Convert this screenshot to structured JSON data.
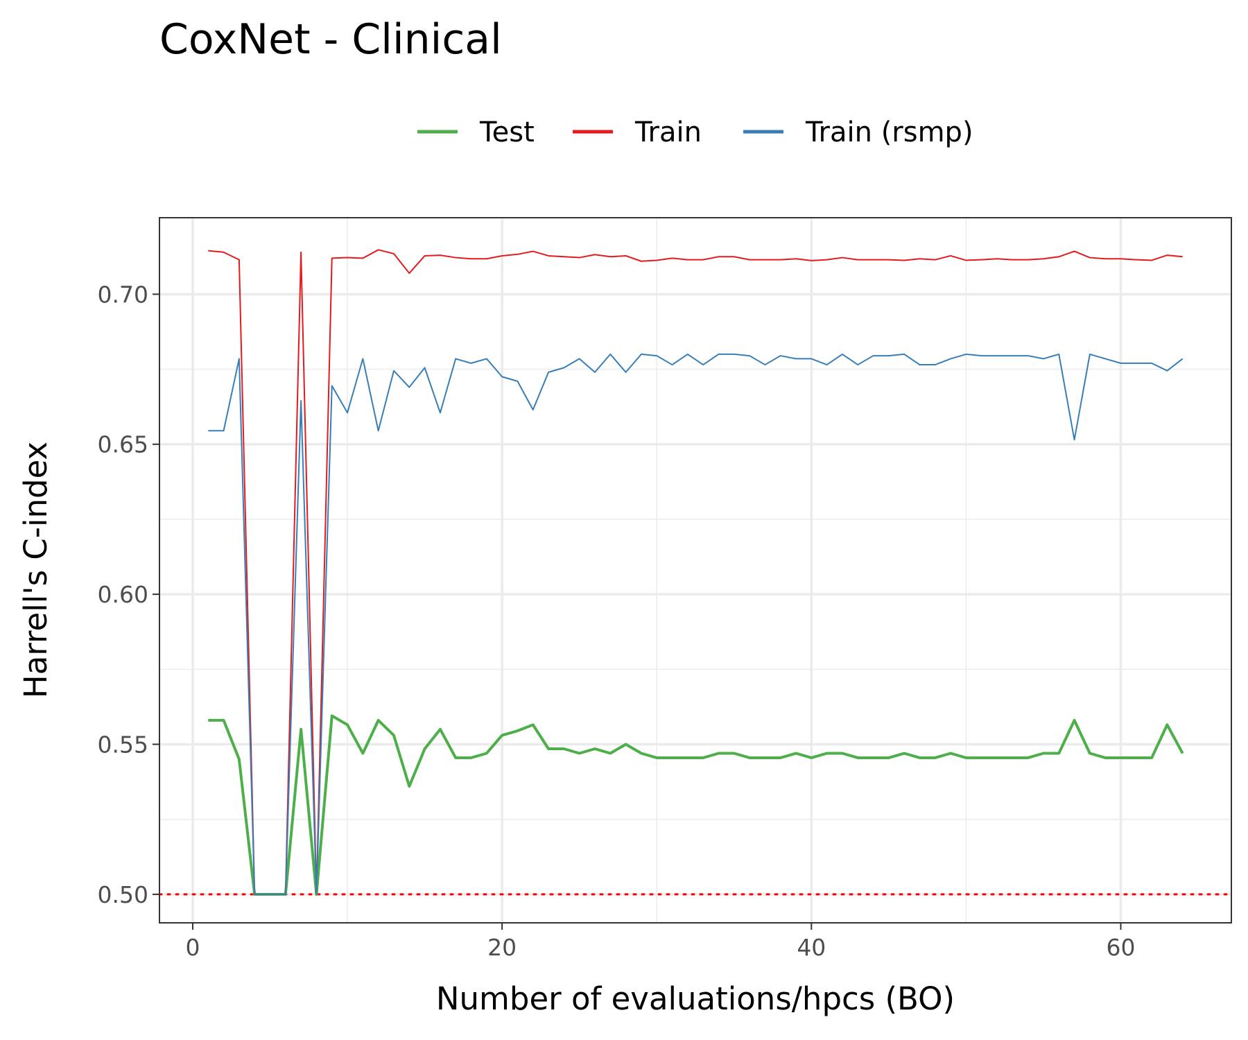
{
  "chart_data": {
    "type": "line",
    "title": "CoxNet - Clinical",
    "xlabel": "Number of evaluations/hpcs (BO)",
    "ylabel": "Harrell's C-index",
    "xlim": [
      -2.15,
      67.15
    ],
    "ylim": [
      0.4905,
      0.7255
    ],
    "x_ticks": [
      0,
      20,
      40,
      60
    ],
    "x_tick_labels": [
      "0",
      "20",
      "40",
      "60"
    ],
    "y_ticks": [
      0.5,
      0.55,
      0.6,
      0.65,
      0.7
    ],
    "y_tick_labels": [
      "0.50",
      "0.55",
      "0.60",
      "0.65",
      "0.70"
    ],
    "grid": true,
    "legend_position": "top",
    "reference_line": {
      "y": 0.5,
      "style": "dotted",
      "color": "#ff0000"
    },
    "x": [
      1,
      2,
      3,
      4,
      5,
      6,
      7,
      8,
      9,
      10,
      11,
      12,
      13,
      14,
      15,
      16,
      17,
      18,
      19,
      20,
      21,
      22,
      23,
      24,
      25,
      26,
      27,
      28,
      29,
      30,
      31,
      32,
      33,
      34,
      35,
      36,
      37,
      38,
      39,
      40,
      41,
      42,
      43,
      44,
      45,
      46,
      47,
      48,
      49,
      50,
      51,
      52,
      53,
      54,
      55,
      56,
      57,
      58,
      59,
      60,
      61,
      62,
      63,
      64
    ],
    "series": [
      {
        "name": "Test",
        "color": "#4daf4a",
        "values": [
          0.558,
          0.558,
          0.545,
          0.5,
          0.5,
          0.5,
          0.555,
          0.5,
          0.5595,
          0.5565,
          0.547,
          0.558,
          0.553,
          0.536,
          0.5485,
          0.555,
          0.5455,
          0.5455,
          0.547,
          0.553,
          0.5545,
          0.5565,
          0.5485,
          0.5485,
          0.547,
          0.5485,
          0.547,
          0.55,
          0.547,
          0.5455,
          0.5455,
          0.5455,
          0.5455,
          0.547,
          0.547,
          0.5455,
          0.5455,
          0.5455,
          0.547,
          0.5455,
          0.547,
          0.547,
          0.5455,
          0.5455,
          0.5455,
          0.547,
          0.5455,
          0.5455,
          0.547,
          0.5455,
          0.5455,
          0.5455,
          0.5455,
          0.5455,
          0.547,
          0.547,
          0.558,
          0.547,
          0.5455,
          0.5455,
          0.5455,
          0.5455,
          0.5565,
          0.547
        ]
      },
      {
        "name": "Train",
        "color": "#e41a1c",
        "values": [
          0.7145,
          0.714,
          0.7115,
          0.5,
          0.5,
          0.5,
          0.714,
          0.5,
          0.712,
          0.7122,
          0.712,
          0.7148,
          0.7135,
          0.707,
          0.7128,
          0.713,
          0.7122,
          0.7118,
          0.7118,
          0.7128,
          0.7133,
          0.7143,
          0.7128,
          0.7125,
          0.7122,
          0.7132,
          0.7125,
          0.7128,
          0.711,
          0.7113,
          0.712,
          0.7115,
          0.7115,
          0.7125,
          0.7125,
          0.7115,
          0.7115,
          0.7115,
          0.7118,
          0.7112,
          0.7115,
          0.7122,
          0.7115,
          0.7115,
          0.7115,
          0.7113,
          0.7118,
          0.7115,
          0.7128,
          0.7113,
          0.7115,
          0.7118,
          0.7115,
          0.7115,
          0.7118,
          0.7125,
          0.7143,
          0.7122,
          0.7118,
          0.7118,
          0.7115,
          0.7113,
          0.713,
          0.7125
        ]
      },
      {
        "name": "Train (rsmp)",
        "color": "#377eb8",
        "values": [
          0.6545,
          0.6545,
          0.6785,
          0.5,
          0.5,
          0.5,
          0.6645,
          0.5,
          0.6695,
          0.6605,
          0.6785,
          0.6545,
          0.6745,
          0.669,
          0.6755,
          0.6605,
          0.6785,
          0.677,
          0.6785,
          0.6725,
          0.671,
          0.6615,
          0.674,
          0.6755,
          0.6785,
          0.674,
          0.68,
          0.674,
          0.68,
          0.6795,
          0.6765,
          0.68,
          0.6765,
          0.68,
          0.68,
          0.6795,
          0.6765,
          0.6795,
          0.6785,
          0.6785,
          0.6765,
          0.68,
          0.6765,
          0.6795,
          0.6795,
          0.68,
          0.6765,
          0.6765,
          0.6785,
          0.68,
          0.6795,
          0.6795,
          0.6795,
          0.6795,
          0.6785,
          0.68,
          0.6515,
          0.68,
          0.6785,
          0.677,
          0.677,
          0.677,
          0.6745,
          0.6785
        ]
      }
    ]
  }
}
